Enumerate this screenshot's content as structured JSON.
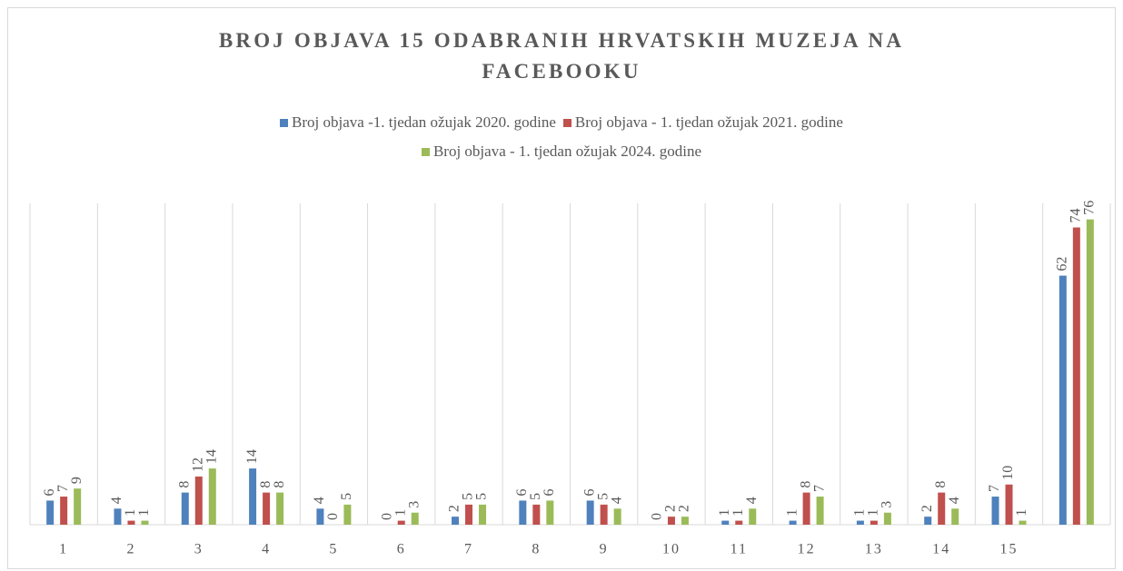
{
  "chart_data": {
    "type": "bar",
    "title": "BROJ OBJAVA 15 ODABRANIH HRVATSKIH MUZEJA NA FACEBOOKU",
    "categories": [
      "1",
      "2",
      "3",
      "4",
      "5",
      "6",
      "7",
      "8",
      "9",
      "10",
      "11",
      "12",
      "13",
      "14",
      "15",
      null
    ],
    "series": [
      {
        "name": "Broj objava -1. tjedan ožujak 2020. godine",
        "color": "#4f81bd",
        "values": [
          6,
          4,
          8,
          14,
          4,
          0,
          2,
          6,
          6,
          0,
          1,
          1,
          1,
          2,
          7,
          62
        ]
      },
      {
        "name": "Broj objava - 1. tjedan ožujak 2021. godine",
        "color": "#c0504d",
        "values": [
          7,
          1,
          12,
          8,
          0,
          1,
          5,
          5,
          5,
          2,
          1,
          8,
          1,
          8,
          10,
          74
        ]
      },
      {
        "name": "Broj objava - 1. tjedan ožujak 2024. godine",
        "color": "#9bbb59",
        "values": [
          9,
          1,
          14,
          8,
          5,
          3,
          5,
          6,
          4,
          2,
          4,
          7,
          3,
          4,
          1,
          76
        ]
      }
    ],
    "ylim": [
      0,
      80
    ]
  }
}
